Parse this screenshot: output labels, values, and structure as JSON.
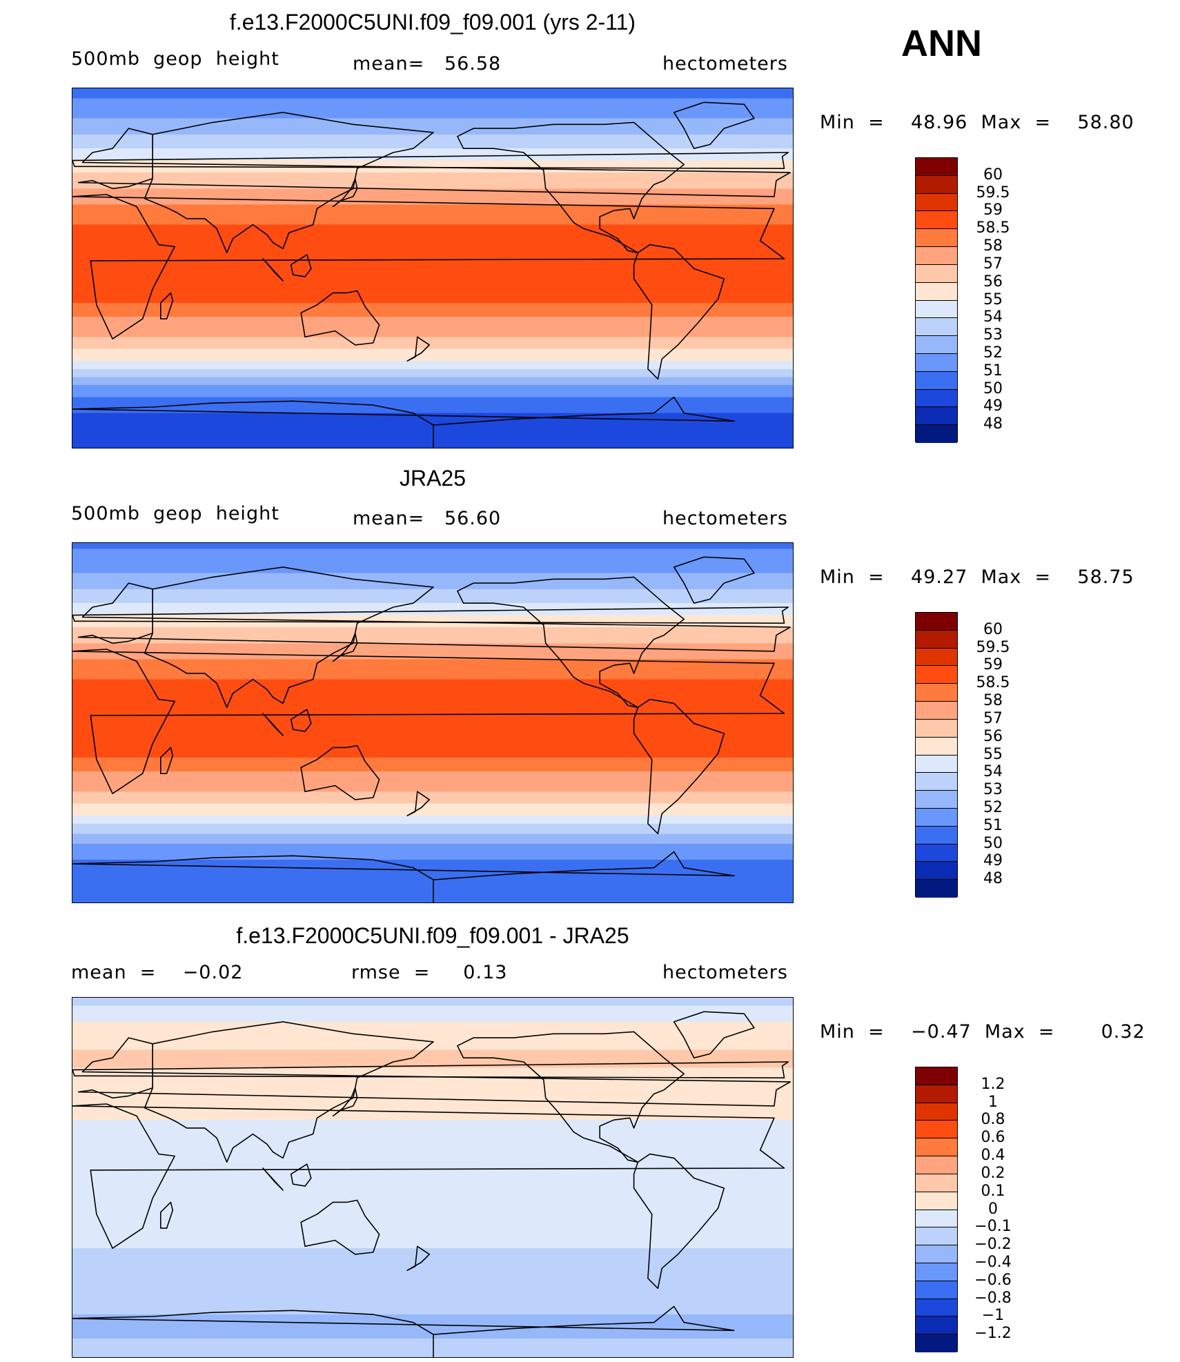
{
  "ann_label": "ANN",
  "panels": [
    {
      "title": "f.e13.F2000C5UNI.f09_f09.001 (yrs 2-11)",
      "left": "500mb  geop  height",
      "mid": "mean=   56.58",
      "right": "hectometers",
      "minmax": "Min  =    48.96  Max  =    58.80"
    },
    {
      "title": "JRA25",
      "left": "500mb  geop  height",
      "mid": "mean=   56.60",
      "right": "hectometers",
      "minmax": "Min  =    49.27  Max  =    58.75"
    },
    {
      "title": "f.e13.F2000C5UNI.f09_f09.001 - JRA25",
      "left": "mean  =    −0.02",
      "mid": "rmse  =     0.13",
      "right": "hectometers",
      "minmax": "Min  =    −0.47  Max  =       0.32"
    }
  ],
  "chart_data": [
    {
      "type": "heatmap",
      "title": "f.e13.F2000C5UNI.f09_f09.001 (yrs 2-11)",
      "variable": "500mb geop height",
      "units": "hectometers",
      "mean": 56.58,
      "min": 48.96,
      "max": 58.8,
      "levels": [
        "60",
        "59.5",
        "59",
        "58.5",
        "58",
        "57",
        "56",
        "55",
        "54",
        "53",
        "52",
        "51",
        "50",
        "49",
        "48"
      ],
      "colors": [
        "#7f0000",
        "#b31b00",
        "#e03500",
        "#ff4d12",
        "#ff7a3d",
        "#ffa47e",
        "#ffc8aa",
        "#ffe6d2",
        "#dde9fb",
        "#bcd2fb",
        "#96b8fb",
        "#6a97fb",
        "#3b6ff2",
        "#1d48dd",
        "#0a2bb3",
        "#021a80"
      ],
      "profile_by_latitude": [
        {
          "lat": 90,
          "value": 50.5
        },
        {
          "lat": 75,
          "value": 52.0
        },
        {
          "lat": 60,
          "value": 54.0
        },
        {
          "lat": 45,
          "value": 56.5
        },
        {
          "lat": 30,
          "value": 58.3
        },
        {
          "lat": 15,
          "value": 58.7
        },
        {
          "lat": 0,
          "value": 58.7
        },
        {
          "lat": -15,
          "value": 58.6
        },
        {
          "lat": -30,
          "value": 57.5
        },
        {
          "lat": -45,
          "value": 55.0
        },
        {
          "lat": -60,
          "value": 51.5
        },
        {
          "lat": -75,
          "value": 49.5
        },
        {
          "lat": -90,
          "value": 49.0
        }
      ]
    },
    {
      "type": "heatmap",
      "title": "JRA25",
      "variable": "500mb geop height",
      "units": "hectometers",
      "mean": 56.6,
      "min": 49.27,
      "max": 58.75,
      "levels": [
        "60",
        "59.5",
        "59",
        "58.5",
        "58",
        "57",
        "56",
        "55",
        "54",
        "53",
        "52",
        "51",
        "50",
        "49",
        "48"
      ],
      "colors": [
        "#7f0000",
        "#b31b00",
        "#e03500",
        "#ff4d12",
        "#ff7a3d",
        "#ffa47e",
        "#ffc8aa",
        "#ffe6d2",
        "#dde9fb",
        "#bcd2fb",
        "#96b8fb",
        "#6a97fb",
        "#3b6ff2",
        "#1d48dd",
        "#0a2bb3",
        "#021a80"
      ],
      "profile_by_latitude": [
        {
          "lat": 90,
          "value": 50.8
        },
        {
          "lat": 75,
          "value": 52.0
        },
        {
          "lat": 60,
          "value": 54.0
        },
        {
          "lat": 45,
          "value": 56.5
        },
        {
          "lat": 30,
          "value": 58.3
        },
        {
          "lat": 15,
          "value": 58.7
        },
        {
          "lat": 0,
          "value": 58.7
        },
        {
          "lat": -15,
          "value": 58.6
        },
        {
          "lat": -30,
          "value": 57.5
        },
        {
          "lat": -45,
          "value": 55.0
        },
        {
          "lat": -60,
          "value": 51.8
        },
        {
          "lat": -75,
          "value": 50.2
        },
        {
          "lat": -90,
          "value": 50.0
        }
      ]
    },
    {
      "type": "heatmap",
      "title": "f.e13.F2000C5UNI.f09_f09.001 - JRA25",
      "units": "hectometers",
      "mean": -0.02,
      "rmse": 0.13,
      "min": -0.47,
      "max": 0.32,
      "levels": [
        "1.2",
        "1",
        "0.8",
        "0.6",
        "0.4",
        "0.2",
        "0.1",
        "0",
        "−0.1",
        "−0.2",
        "−0.4",
        "−0.6",
        "−0.8",
        "−1",
        "−1.2"
      ],
      "colors": [
        "#7f0000",
        "#b31b00",
        "#e03500",
        "#ff4d12",
        "#ff7a3d",
        "#ffa47e",
        "#ffc8aa",
        "#ffe6d2",
        "#dde9fb",
        "#bcd2fb",
        "#96b8fb",
        "#6a97fb",
        "#3b6ff2",
        "#1d48dd",
        "#0a2bb3",
        "#021a80"
      ],
      "profile_by_latitude": [
        {
          "lat": 90,
          "value": -0.15
        },
        {
          "lat": 75,
          "value": 0.05
        },
        {
          "lat": 60,
          "value": 0.12
        },
        {
          "lat": 45,
          "value": 0.05
        },
        {
          "lat": 30,
          "value": 0.0
        },
        {
          "lat": 15,
          "value": -0.05
        },
        {
          "lat": 0,
          "value": -0.05
        },
        {
          "lat": -15,
          "value": -0.05
        },
        {
          "lat": -30,
          "value": -0.08
        },
        {
          "lat": -45,
          "value": -0.15
        },
        {
          "lat": -60,
          "value": -0.18
        },
        {
          "lat": -75,
          "value": -0.22
        },
        {
          "lat": -90,
          "value": -0.15
        }
      ]
    }
  ]
}
